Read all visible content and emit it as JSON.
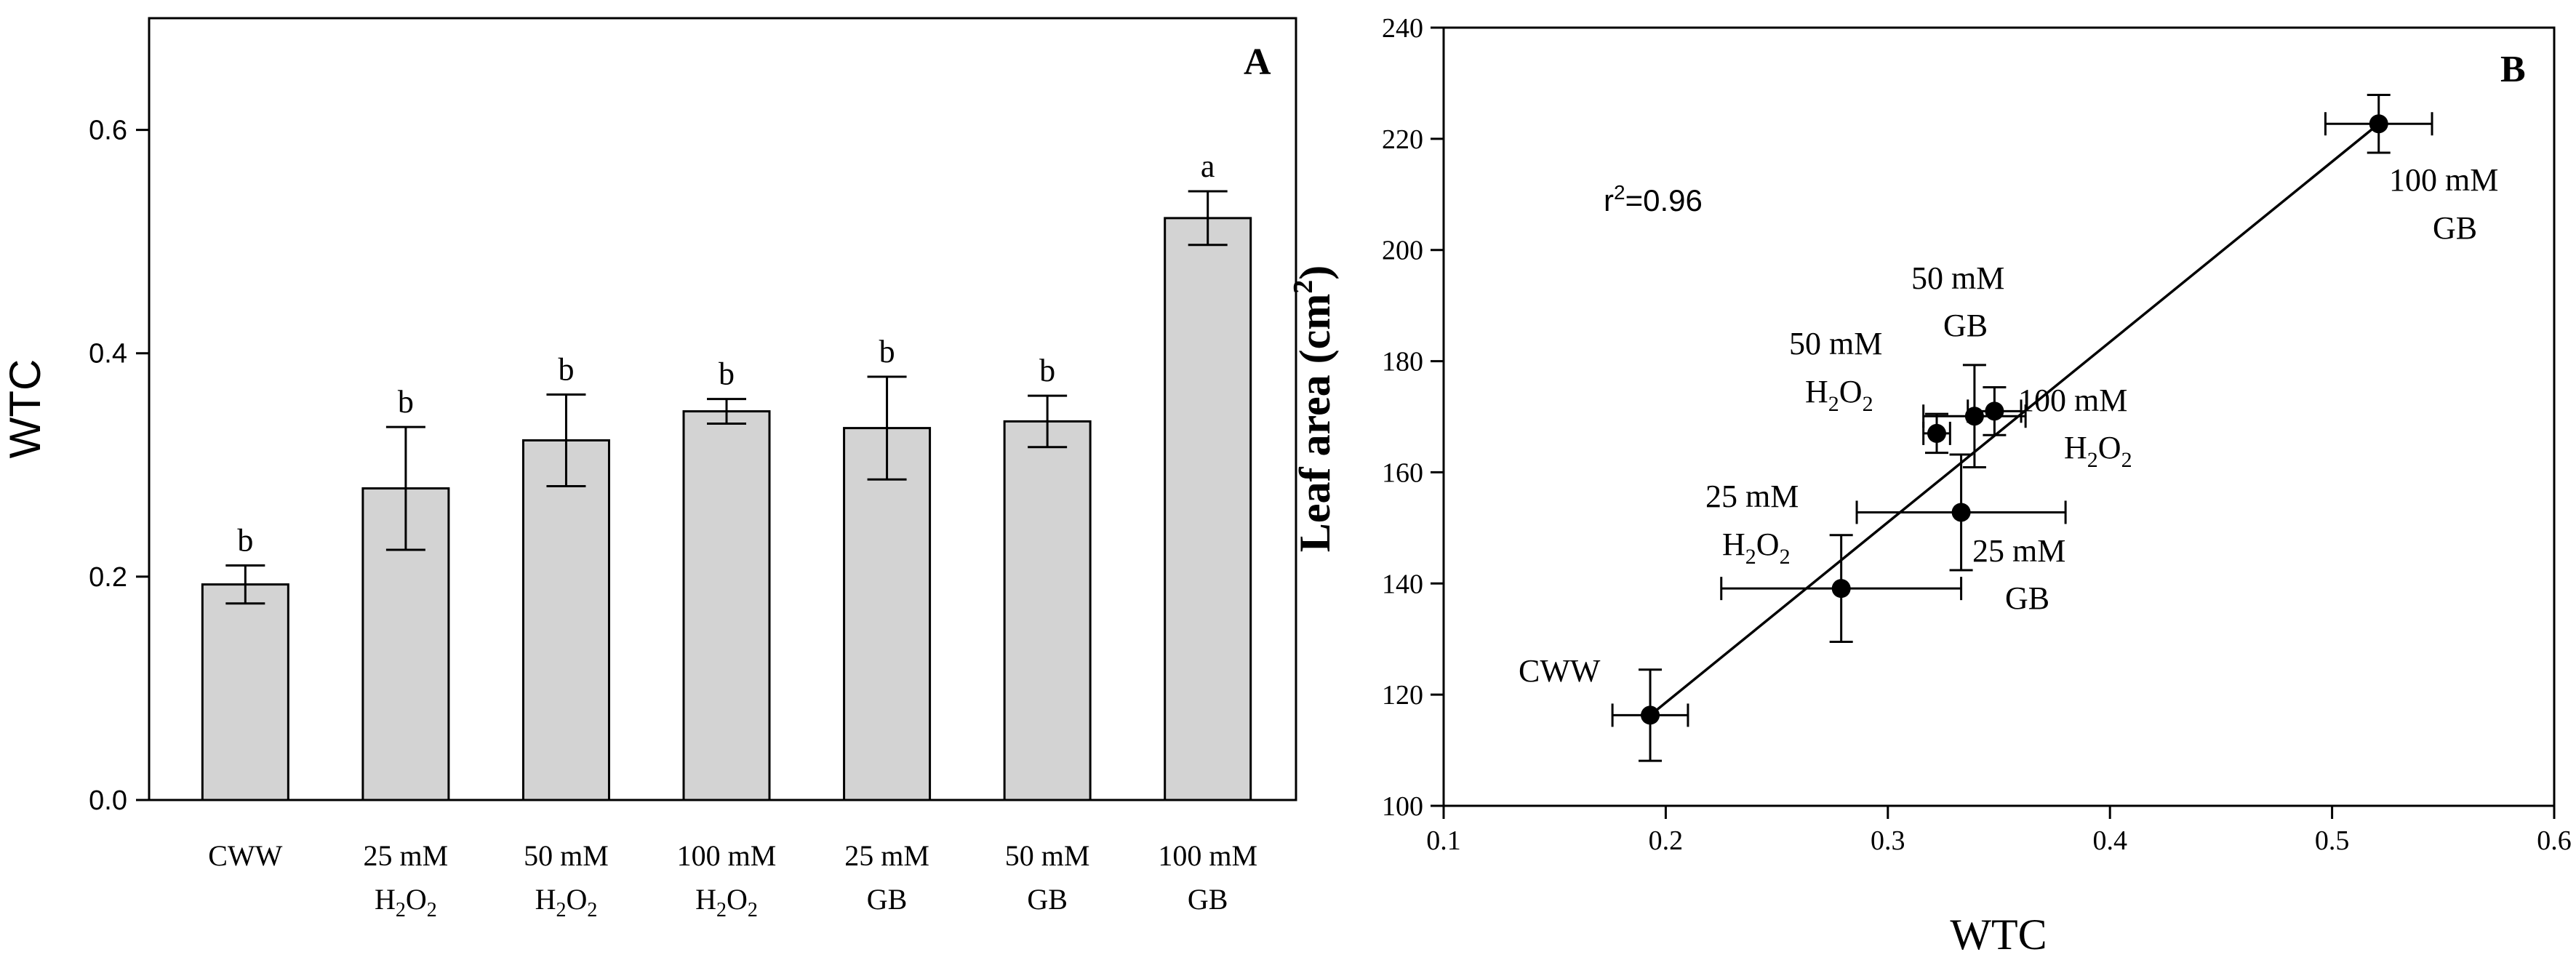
{
  "chart_data": [
    {
      "type": "bar",
      "panel": "A",
      "ylabel": "WTC",
      "ylim": [
        0,
        0.7
      ],
      "yticks": [
        "0.0",
        "0.2",
        "0.4",
        "0.6"
      ],
      "categories": [
        {
          "line1": "CWW",
          "line2": "",
          "line2_sub": "",
          "line2_tail": ""
        },
        {
          "line1": "25 mM",
          "line2": "H",
          "line2_sub": "2",
          "line2_tail": "O",
          "line2_sub2": "2"
        },
        {
          "line1": "50 mM",
          "line2": "H",
          "line2_sub": "2",
          "line2_tail": "O",
          "line2_sub2": "2"
        },
        {
          "line1": "100 mM",
          "line2": "H",
          "line2_sub": "2",
          "line2_tail": "O",
          "line2_sub2": "2"
        },
        {
          "line1": "25 mM",
          "line2": "GB",
          "line2_sub": "",
          "line2_tail": ""
        },
        {
          "line1": "50 mM",
          "line2": "GB",
          "line2_sub": "",
          "line2_tail": ""
        },
        {
          "line1": "100 mM",
          "line2": "GB",
          "line2_sub": "",
          "line2_tail": ""
        }
      ],
      "values": [
        0.193,
        0.279,
        0.322,
        0.348,
        0.333,
        0.339,
        0.521
      ],
      "errors": [
        0.017,
        0.055,
        0.041,
        0.011,
        0.046,
        0.023,
        0.024
      ],
      "letters": [
        "b",
        "b",
        "b",
        "b",
        "b",
        "b",
        "a"
      ],
      "bar_color": "#d3d3d3"
    },
    {
      "type": "scatter",
      "panel": "B",
      "xlabel": "WTC",
      "ylabel": "Leaf area (cm",
      "ylabel_sup": "2",
      "ylabel_tail": ")",
      "xlim": [
        0.1,
        0.6
      ],
      "ylim": [
        100,
        240
      ],
      "xticks": [
        "0.1",
        "0.2",
        "0.3",
        "0.4",
        "0.5",
        "0.6"
      ],
      "yticks": [
        "100",
        "120",
        "140",
        "160",
        "180",
        "200",
        "220",
        "240"
      ],
      "r2_label": "r",
      "r2_sup": "2",
      "r2_value": "=0.96",
      "points": [
        {
          "name": "CWW",
          "x": 0.193,
          "y": 116.3,
          "xerr": 0.017,
          "yerr": 8.2
        },
        {
          "name": "25 mM H2O2",
          "x": 0.279,
          "y": 139.1,
          "xerr": 0.054,
          "yerr": 9.6
        },
        {
          "name": "50 mM H2O2",
          "x": 0.322,
          "y": 167.0,
          "xerr": 0.006,
          "yerr": 3.5
        },
        {
          "name": "100 mM H2O2",
          "x": 0.348,
          "y": 171.0,
          "xerr": 0.012,
          "yerr": 4.3
        },
        {
          "name": "25 mM GB",
          "x": 0.333,
          "y": 152.8,
          "xerr": 0.047,
          "yerr": 10.4
        },
        {
          "name": "50 mM GB",
          "x": 0.339,
          "y": 170.1,
          "xerr": 0.023,
          "yerr": 9.2
        },
        {
          "name": "100 mM GB",
          "x": 0.521,
          "y": 222.7,
          "xerr": 0.024,
          "yerr": 5.2
        }
      ],
      "regression": {
        "x1": 0.193,
        "y1": 116.3,
        "x2": 0.521,
        "y2": 222.7
      },
      "labels": {
        "cww": "CWW",
        "h25_l1": "25 mM",
        "h25_l2": "H",
        "h25_sub": "2",
        "h25_tail": "O",
        "h25_sub2": "2",
        "h50_l1": "50 mM",
        "h50_l2": "H",
        "h50_sub": "2",
        "h50_tail": "O",
        "h50_sub2": "2",
        "h100_l1": "100 mM",
        "h100_l2": "H",
        "h100_sub": "2",
        "h100_tail": "O",
        "h100_sub2": "2",
        "gb25_l1": "25 mM",
        "gb25_l2": "GB",
        "gb50_l1": "50 mM",
        "gb50_l2": "GB",
        "gb100_l1": "100 mM",
        "gb100_l2": "GB"
      }
    }
  ]
}
